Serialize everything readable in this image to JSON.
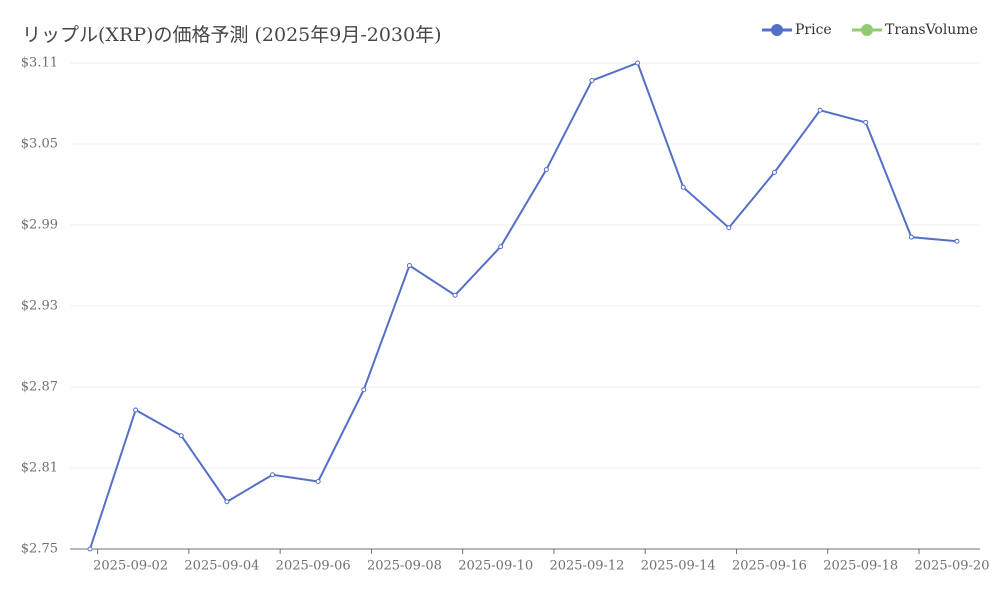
{
  "chart_data": {
    "type": "line",
    "title": "リップル(XRP)の価格予測 (2025年9月-2030年)",
    "x": [
      "2025-09-01",
      "2025-09-02",
      "2025-09-03",
      "2025-09-04",
      "2025-09-05",
      "2025-09-06",
      "2025-09-07",
      "2025-09-08",
      "2025-09-09",
      "2025-09-10",
      "2025-09-11",
      "2025-09-12",
      "2025-09-13",
      "2025-09-14",
      "2025-09-15",
      "2025-09-16",
      "2025-09-17",
      "2025-09-18",
      "2025-09-19",
      "2025-09-20"
    ],
    "xticks": [
      "2025-09-02",
      "2025-09-04",
      "2025-09-06",
      "2025-09-08",
      "2025-09-10",
      "2025-09-12",
      "2025-09-14",
      "2025-09-16",
      "2025-09-18",
      "2025-09-20"
    ],
    "series": [
      {
        "name": "Price",
        "color": "#5470c6",
        "values": [
          2.75,
          2.853,
          2.834,
          2.785,
          2.805,
          2.8,
          2.868,
          2.96,
          2.938,
          2.974,
          3.031,
          3.097,
          3.11,
          3.018,
          2.988,
          3.029,
          3.075,
          3.066,
          2.981,
          2.978
        ]
      },
      {
        "name": "TransVolume",
        "color": "#91cc75",
        "values": [
          null,
          null,
          null,
          null,
          null,
          null,
          null,
          null,
          null,
          null,
          null,
          null,
          null,
          null,
          null,
          null,
          null,
          null,
          null,
          null
        ]
      }
    ],
    "ylim": [
      2.75,
      3.11
    ],
    "yticks": [
      {
        "value": 2.75,
        "label": "$2.75"
      },
      {
        "value": 2.81,
        "label": "$2.81"
      },
      {
        "value": 2.87,
        "label": "$2.87"
      },
      {
        "value": 2.93,
        "label": "$2.93"
      },
      {
        "value": 2.99,
        "label": "$2.99"
      },
      {
        "value": 3.05,
        "label": "$3.05"
      },
      {
        "value": 3.11,
        "label": "$3.11"
      }
    ],
    "grid": true,
    "legend": "top-right"
  }
}
